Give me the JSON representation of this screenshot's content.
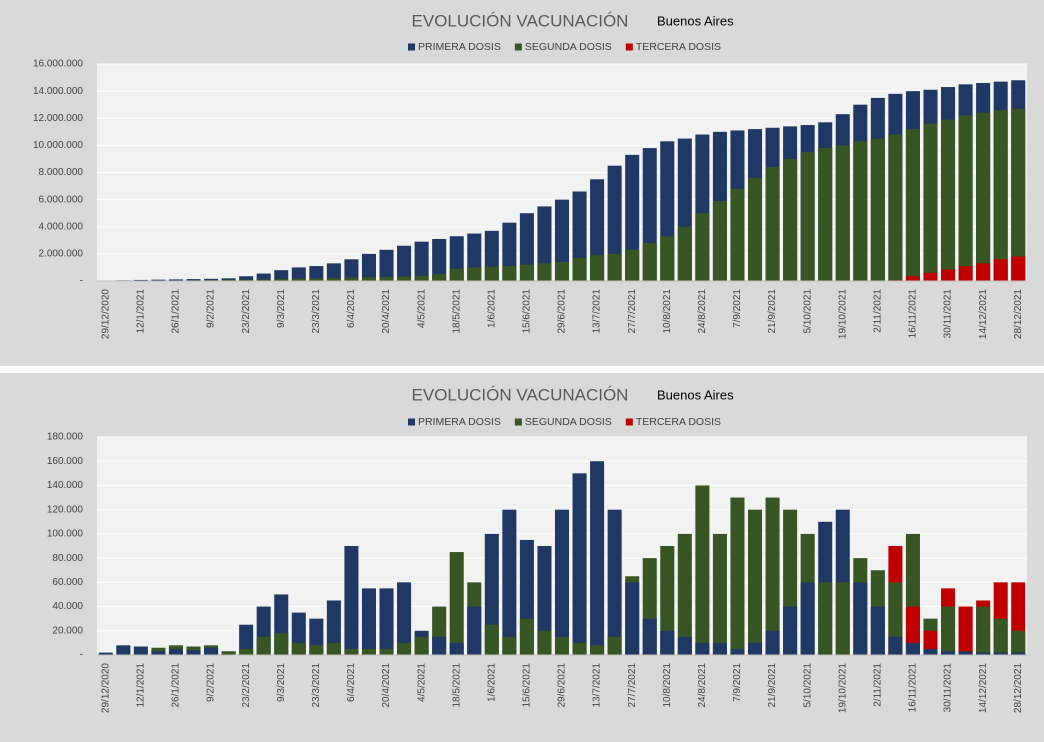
{
  "chart_data": [
    {
      "type": "bar",
      "title": "EVOLUCIÓN VACUNACIÓN",
      "subtitle": "Buenos Aires",
      "categories": [
        "29/12/2020",
        null,
        "12/1/2021",
        null,
        "26/1/2021",
        null,
        "9/2/2021",
        null,
        "23/2/2021",
        null,
        "9/3/2021",
        null,
        "23/3/2021",
        null,
        "6/4/2021",
        null,
        "20/4/2021",
        null,
        "4/5/2021",
        null,
        "18/5/2021",
        null,
        "1/6/2021",
        null,
        "15/6/2021",
        null,
        "29/6/2021",
        null,
        "13/7/2021",
        null,
        "27/7/2021",
        null,
        "10/8/2021",
        null,
        "24/8/2021",
        null,
        "7/9/2021",
        null,
        "21/9/2021",
        null,
        "5/10/2021",
        null,
        "19/10/2021",
        null,
        "2/11/2021",
        null,
        "16/11/2021",
        null,
        "30/11/2021",
        null,
        "14/12/2021",
        null,
        "28/12/2021"
      ],
      "series": [
        {
          "name": "PRIMERA DOSIS",
          "color": "#203864",
          "values": [
            20000,
            50000,
            80000,
            100000,
            120000,
            140000,
            160000,
            200000,
            350000,
            550000,
            800000,
            1000000,
            1100000,
            1300000,
            1600000,
            2000000,
            2300000,
            2600000,
            2900000,
            3100000,
            3300000,
            3500000,
            3700000,
            4300000,
            5000000,
            5500000,
            6000000,
            6600000,
            7500000,
            8500000,
            9300000,
            9800000,
            10300000,
            10500000,
            10800000,
            11000000,
            11100000,
            11200000,
            11300000,
            11400000,
            11500000,
            11700000,
            12300000,
            13000000,
            13500000,
            13800000,
            14000000,
            14100000,
            14300000,
            14500000,
            14600000,
            14700000,
            14800000
          ]
        },
        {
          "name": "SEGUNDA DOSIS",
          "color": "#375623",
          "values": [
            0,
            0,
            0,
            10000,
            30000,
            50000,
            70000,
            90000,
            100000,
            120000,
            150000,
            180000,
            200000,
            220000,
            250000,
            280000,
            300000,
            330000,
            380000,
            500000,
            900000,
            1000000,
            1050000,
            1100000,
            1200000,
            1300000,
            1400000,
            1700000,
            1900000,
            2000000,
            2300000,
            2800000,
            3300000,
            4000000,
            5000000,
            5900000,
            6800000,
            7600000,
            8400000,
            9000000,
            9500000,
            9800000,
            10000000,
            10300000,
            10500000,
            10800000,
            11200000,
            11600000,
            11900000,
            12200000,
            12400000,
            12600000,
            12700000
          ]
        },
        {
          "name": "TERCERA DOSIS",
          "color": "#c00000",
          "values": [
            0,
            0,
            0,
            0,
            0,
            0,
            0,
            0,
            0,
            0,
            0,
            0,
            0,
            0,
            0,
            0,
            0,
            0,
            0,
            0,
            0,
            0,
            0,
            0,
            0,
            0,
            0,
            0,
            0,
            0,
            0,
            0,
            0,
            0,
            0,
            0,
            0,
            0,
            0,
            0,
            0,
            0,
            0,
            0,
            0,
            50000,
            350000,
            600000,
            850000,
            1100000,
            1300000,
            1600000,
            1800000
          ]
        }
      ],
      "ylim": [
        0,
        16000000
      ],
      "yticks": [
        {
          "value": 0,
          "label": "-"
        },
        {
          "value": 2000000,
          "label": "2.000.000"
        },
        {
          "value": 4000000,
          "label": "4.000.000"
        },
        {
          "value": 6000000,
          "label": "6.000.000"
        },
        {
          "value": 8000000,
          "label": "8.000.000"
        },
        {
          "value": 10000000,
          "label": "10.000.000"
        },
        {
          "value": 12000000,
          "label": "12.000.000"
        },
        {
          "value": 14000000,
          "label": "14.000.000"
        },
        {
          "value": 16000000,
          "label": "16.000.000"
        }
      ],
      "grid": true
    },
    {
      "type": "bar",
      "title": "EVOLUCIÓN VACUNACIÓN",
      "subtitle": "Buenos Aires",
      "categories": [
        "29/12/2020",
        null,
        "12/1/2021",
        null,
        "26/1/2021",
        null,
        "9/2/2021",
        null,
        "23/2/2021",
        null,
        "9/3/2021",
        null,
        "23/3/2021",
        null,
        "6/4/2021",
        null,
        "20/4/2021",
        null,
        "4/5/2021",
        null,
        "18/5/2021",
        null,
        "1/6/2021",
        null,
        "15/6/2021",
        null,
        "29/6/2021",
        null,
        "13/7/2021",
        null,
        "27/7/2021",
        null,
        "10/8/2021",
        null,
        "24/8/2021",
        null,
        "7/9/2021",
        null,
        "21/9/2021",
        null,
        "5/10/2021",
        null,
        "19/10/2021",
        null,
        "2/11/2021",
        null,
        "16/11/2021",
        null,
        "30/11/2021",
        null,
        "14/12/2021",
        null,
        "28/12/2021"
      ],
      "series": [
        {
          "name": "PRIMERA DOSIS",
          "color": "#203864",
          "values": [
            2000,
            8000,
            7000,
            3000,
            5000,
            4000,
            6000,
            3000,
            25000,
            40000,
            50000,
            35000,
            30000,
            45000,
            90000,
            55000,
            55000,
            60000,
            20000,
            15000,
            10000,
            40000,
            100000,
            120000,
            95000,
            90000,
            120000,
            150000,
            160000,
            120000,
            60000,
            30000,
            20000,
            15000,
            10000,
            10000,
            5000,
            10000,
            20000,
            40000,
            60000,
            110000,
            120000,
            60000,
            40000,
            15000,
            10000,
            5000,
            3000,
            3000,
            2000,
            2000,
            2000
          ]
        },
        {
          "name": "SEGUNDA DOSIS",
          "color": "#375623",
          "values": [
            0,
            0,
            0,
            6000,
            8000,
            7000,
            8000,
            3000,
            5000,
            15000,
            18000,
            10000,
            8000,
            10000,
            5000,
            5000,
            5000,
            10000,
            15000,
            40000,
            85000,
            60000,
            25000,
            15000,
            30000,
            20000,
            15000,
            10000,
            8000,
            15000,
            65000,
            80000,
            90000,
            100000,
            140000,
            100000,
            130000,
            120000,
            130000,
            120000,
            100000,
            60000,
            60000,
            80000,
            70000,
            60000,
            100000,
            30000,
            40000,
            40000,
            40000,
            30000,
            20000
          ]
        },
        {
          "name": "TERCERA DOSIS",
          "color": "#c00000",
          "values": [
            0,
            0,
            0,
            0,
            0,
            0,
            0,
            0,
            0,
            0,
            0,
            0,
            0,
            0,
            0,
            0,
            0,
            0,
            0,
            0,
            0,
            0,
            0,
            0,
            0,
            0,
            0,
            0,
            0,
            0,
            0,
            0,
            0,
            0,
            0,
            0,
            0,
            0,
            0,
            0,
            0,
            0,
            0,
            0,
            0,
            90000,
            40000,
            20000,
            55000,
            40000,
            45000,
            60000,
            60000
          ]
        }
      ],
      "ylim": [
        0,
        180000
      ],
      "yticks": [
        {
          "value": 0,
          "label": "-"
        },
        {
          "value": 20000,
          "label": "20.000"
        },
        {
          "value": 40000,
          "label": "40.000"
        },
        {
          "value": 60000,
          "label": "60.000"
        },
        {
          "value": 80000,
          "label": "80.000"
        },
        {
          "value": 100000,
          "label": "100.000"
        },
        {
          "value": 120000,
          "label": "120.000"
        },
        {
          "value": 140000,
          "label": "140.000"
        },
        {
          "value": 160000,
          "label": "160.000"
        },
        {
          "value": 180000,
          "label": "180.000"
        }
      ],
      "grid": true
    }
  ]
}
